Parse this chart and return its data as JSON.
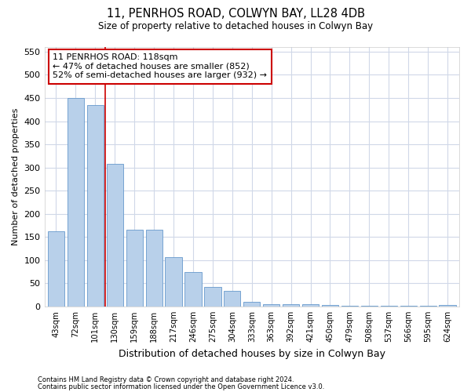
{
  "title1": "11, PENRHOS ROAD, COLWYN BAY, LL28 4DB",
  "title2": "Size of property relative to detached houses in Colwyn Bay",
  "xlabel": "Distribution of detached houses by size in Colwyn Bay",
  "ylabel": "Number of detached properties",
  "categories": [
    "43sqm",
    "72sqm",
    "101sqm",
    "130sqm",
    "159sqm",
    "188sqm",
    "217sqm",
    "246sqm",
    "275sqm",
    "304sqm",
    "333sqm",
    "363sqm",
    "392sqm",
    "421sqm",
    "450sqm",
    "479sqm",
    "508sqm",
    "537sqm",
    "566sqm",
    "595sqm",
    "624sqm"
  ],
  "values": [
    162,
    450,
    435,
    308,
    165,
    165,
    107,
    75,
    42,
    33,
    10,
    5,
    5,
    5,
    3,
    2,
    2,
    1,
    1,
    1,
    4
  ],
  "bar_color": "#b8d0ea",
  "bar_edge_color": "#6699cc",
  "vline_x": 2.5,
  "vline_color": "#cc0000",
  "annotation_text": "11 PENRHOS ROAD: 118sqm\n← 47% of detached houses are smaller (852)\n52% of semi-detached houses are larger (932) →",
  "annotation_box_color": "#ffffff",
  "annotation_box_edge": "#cc0000",
  "ylim": [
    0,
    560
  ],
  "yticks": [
    0,
    50,
    100,
    150,
    200,
    250,
    300,
    350,
    400,
    450,
    500,
    550
  ],
  "footer1": "Contains HM Land Registry data © Crown copyright and database right 2024.",
  "footer2": "Contains public sector information licensed under the Open Government Licence v3.0.",
  "bg_color": "#ffffff",
  "plot_bg_color": "#ffffff",
  "grid_color": "#d0d8e8"
}
